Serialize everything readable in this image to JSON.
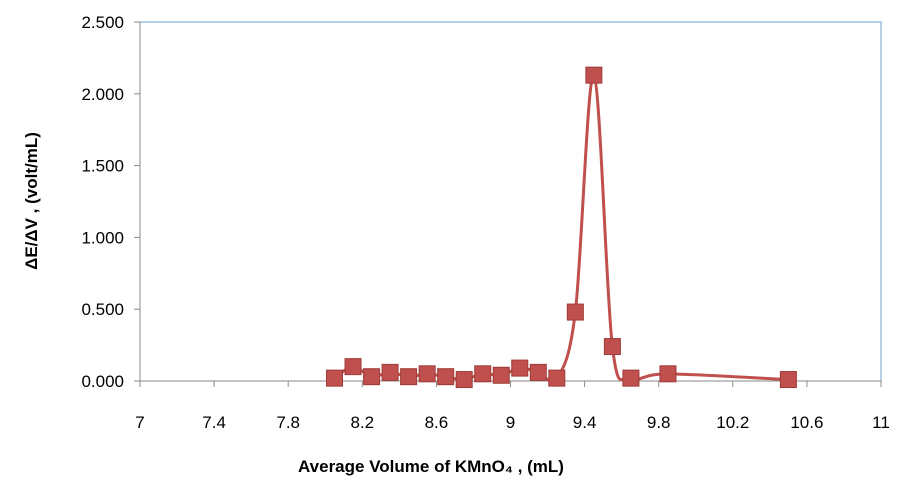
{
  "chart_data": {
    "type": "scatter",
    "title": "",
    "xlabel": "Average Volume of  KMnO₄ , (mL)",
    "ylabel": "ΔE/ΔV , (volt/mL)",
    "xlim": [
      7,
      11
    ],
    "ylim": [
      0,
      2.5
    ],
    "x_ticks": [
      "7",
      "7.4",
      "7.8",
      "8.2",
      "8.6",
      "9",
      "9.4",
      "9.8",
      "10.2",
      "10.6",
      "11"
    ],
    "y_ticks": [
      "0.000",
      "0.500",
      "1.000",
      "1.500",
      "2.000",
      "2.500"
    ],
    "grid": false,
    "legend": "none",
    "series": [
      {
        "marker": "square",
        "line": "smooth",
        "color": "#c0504d",
        "x": [
          8.05,
          8.15,
          8.25,
          8.35,
          8.45,
          8.55,
          8.65,
          8.75,
          8.85,
          8.95,
          9.05,
          9.15,
          9.25,
          9.35,
          9.45,
          9.55,
          9.65,
          9.85,
          10.5
        ],
        "y": [
          0.02,
          0.1,
          0.03,
          0.06,
          0.03,
          0.05,
          0.03,
          0.01,
          0.05,
          0.04,
          0.09,
          0.06,
          0.02,
          0.48,
          2.13,
          0.24,
          0.02,
          0.05,
          0.01
        ]
      }
    ]
  }
}
